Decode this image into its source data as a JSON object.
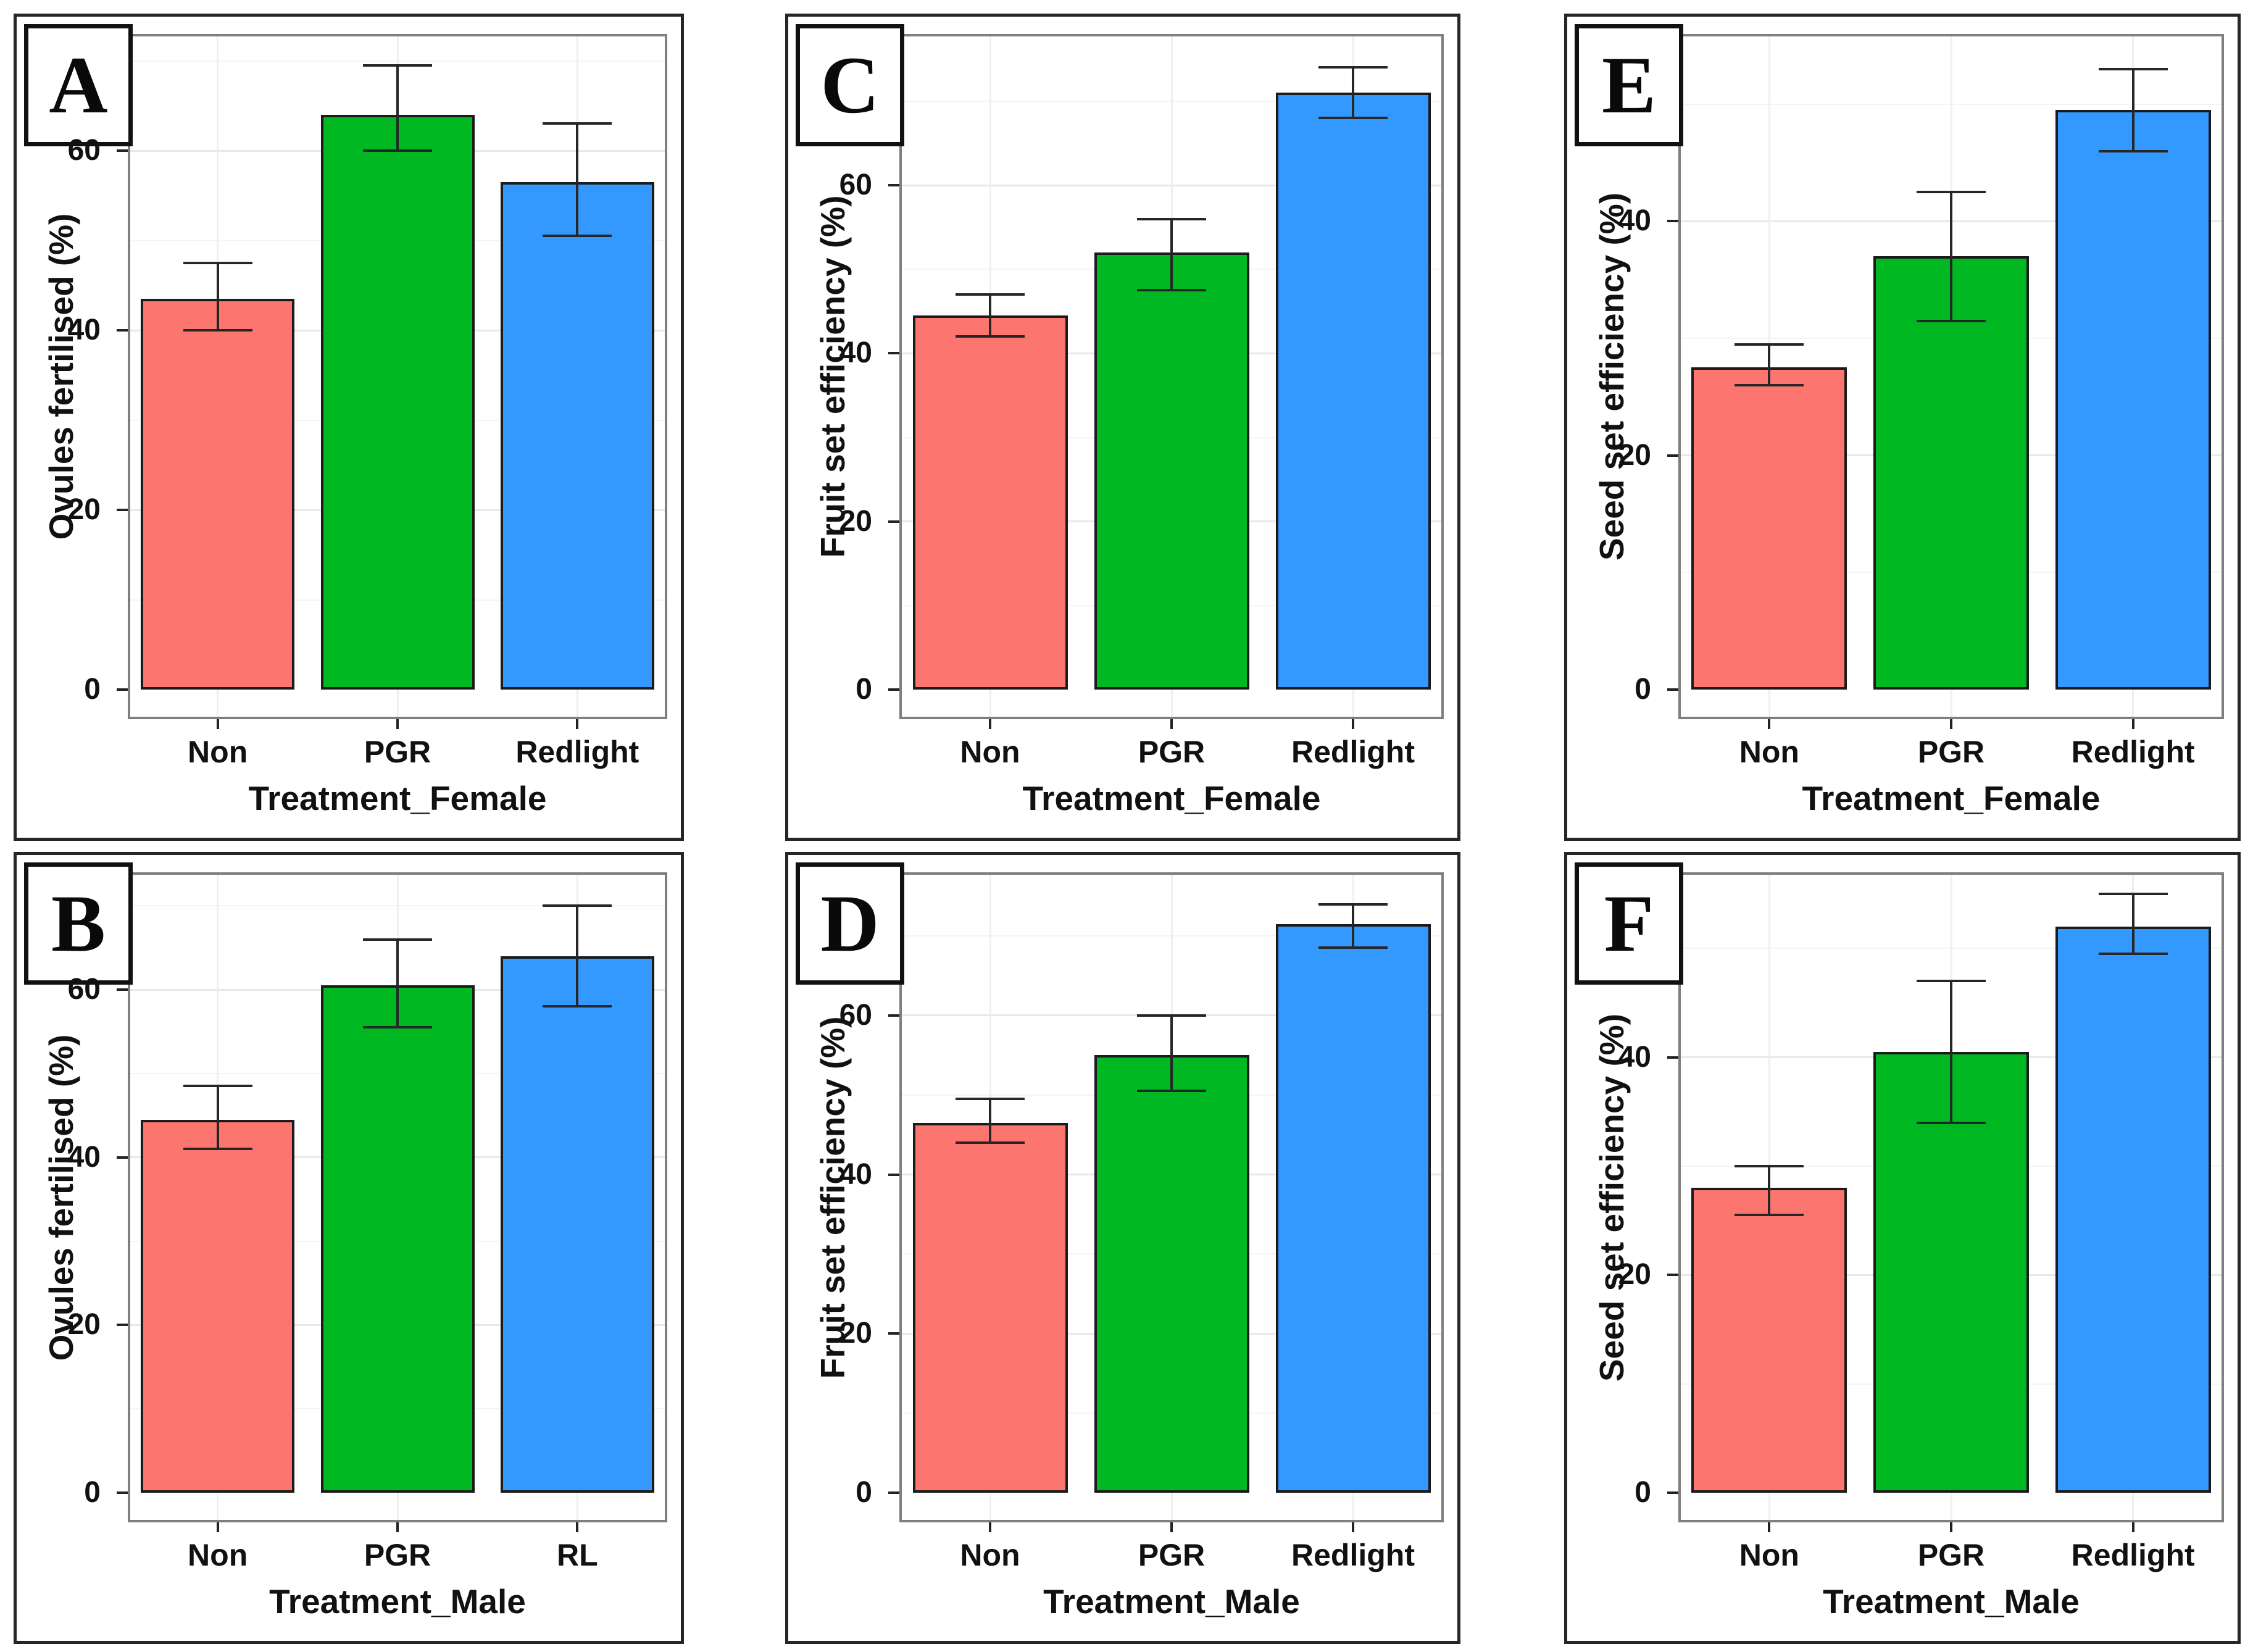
{
  "figure": {
    "background": "#FFFFFF",
    "description_visible_panels": [
      "A",
      "B",
      "C",
      "D",
      "E",
      "F"
    ]
  },
  "colors": {
    "bar_fill": [
      "#FC766F",
      "#00B822",
      "#3399FF"
    ],
    "bar_border": "#1B1B1B",
    "error_bar": "#262626",
    "plot_frame": "#7F7F7F",
    "panel_border": "#262626",
    "grid_major": "#E8E8E8",
    "grid_minor": "#F4F4F4",
    "grid_vertical": "#EFEFEF",
    "text": "#111111"
  },
  "chart_data": {
    "type": "bar",
    "layout": "2 rows x 3 columns, panels ordered column-major (A,B | C,D | E,F), grid on, no legend",
    "error_bars": "symmetric caps, values read from axis",
    "panels": [
      {
        "letter": "A",
        "ylabel": "Ovules fertilised (%)",
        "xlabel": "Treatment_Female",
        "categories": [
          "Non",
          "PGR",
          "Redlight"
        ],
        "values": [
          43.5,
          64,
          56.5
        ],
        "err_low": [
          40,
          60,
          50.5
        ],
        "err_high": [
          47.5,
          69.5,
          63
        ],
        "yticks": [
          0,
          20,
          40,
          60
        ],
        "ylim": [
          0,
          73
        ]
      },
      {
        "letter": "B",
        "ylabel": "Ovules fertilised (%)",
        "xlabel": "Treatment_Male",
        "categories": [
          "Non",
          "PGR",
          "RL"
        ],
        "values": [
          44.5,
          60.5,
          64
        ],
        "err_low": [
          41,
          55.5,
          58
        ],
        "err_high": [
          48.5,
          66,
          70
        ],
        "yticks": [
          0,
          20,
          40,
          60
        ],
        "ylim": [
          0,
          74
        ]
      },
      {
        "letter": "C",
        "ylabel": "Fruit set efficiency (%)",
        "xlabel": "Treatment_Female",
        "categories": [
          "Non",
          "PGR",
          "Redlight"
        ],
        "values": [
          44.5,
          52,
          71
        ],
        "err_low": [
          42,
          47.5,
          68
        ],
        "err_high": [
          47,
          56,
          74
        ],
        "yticks": [
          0,
          20,
          40,
          60
        ],
        "ylim": [
          0,
          78
        ]
      },
      {
        "letter": "D",
        "ylabel": "Fruit set efficiency (%)",
        "xlabel": "Treatment_Male",
        "categories": [
          "Non",
          "PGR",
          "Redlight"
        ],
        "values": [
          46.5,
          55,
          71.5
        ],
        "err_low": [
          44,
          50.5,
          68.5
        ],
        "err_high": [
          49.5,
          60,
          74
        ],
        "yticks": [
          0,
          20,
          40,
          60
        ],
        "ylim": [
          0,
          78
        ]
      },
      {
        "letter": "E",
        "ylabel": "Seed set efficiency (%)",
        "xlabel": "Treatment_Female",
        "categories": [
          "Non",
          "PGR",
          "Redlight"
        ],
        "values": [
          27.5,
          37,
          49.5
        ],
        "err_low": [
          26,
          31.5,
          46
        ],
        "err_high": [
          29.5,
          42.5,
          53
        ],
        "yticks": [
          0,
          20,
          40
        ],
        "ylim": [
          0,
          56
        ]
      },
      {
        "letter": "F",
        "ylabel": "Seed set efficiency (%)",
        "xlabel": "Treatment_Male",
        "categories": [
          "Non",
          "PGR",
          "Redlight"
        ],
        "values": [
          28,
          40.5,
          52
        ],
        "err_low": [
          25.5,
          34,
          49.5
        ],
        "err_high": [
          30,
          47,
          55
        ],
        "yticks": [
          0,
          20,
          40
        ],
        "ylim": [
          0,
          57
        ]
      }
    ]
  }
}
